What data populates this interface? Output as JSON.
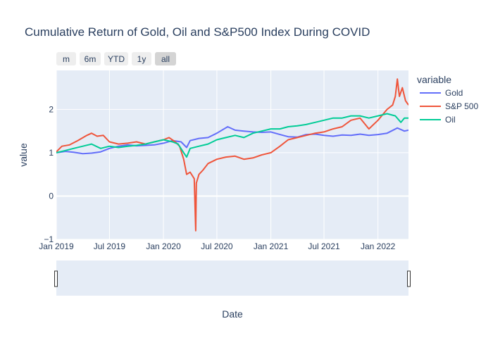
{
  "chart_data": {
    "type": "line",
    "title": "Cumulative Return of Gold, Oil and S&P500 Index During COVID",
    "xlabel": "Date",
    "ylabel": "value",
    "xlim": [
      "2019-01-01",
      "2022-04-15"
    ],
    "ylim": [
      -1,
      2.9
    ],
    "x_ticks": [
      {
        "date": "2019-01-01",
        "label": "Jan 2019"
      },
      {
        "date": "2019-07-01",
        "label": "Jul 2019"
      },
      {
        "date": "2020-01-01",
        "label": "Jan 2020"
      },
      {
        "date": "2020-07-01",
        "label": "Jul 2020"
      },
      {
        "date": "2021-01-01",
        "label": "Jan 2021"
      },
      {
        "date": "2021-07-01",
        "label": "Jul 2021"
      },
      {
        "date": "2022-01-01",
        "label": "Jan 2022"
      }
    ],
    "y_ticks": [
      {
        "value": -1,
        "label": "−1"
      },
      {
        "value": 0,
        "label": "0"
      },
      {
        "value": 1,
        "label": "1"
      },
      {
        "value": 2,
        "label": "2"
      }
    ],
    "grid": true,
    "legend": {
      "title": "variable",
      "placement": "right"
    },
    "range_selector": [
      "m",
      "6m",
      "YTD",
      "1y",
      "all"
    ],
    "range_selector_active": "all",
    "series": [
      {
        "name": "Gold",
        "color": "#636efa",
        "points": [
          [
            "2019-01-01",
            1.0
          ],
          [
            "2019-02-01",
            1.03
          ],
          [
            "2019-03-01",
            1.01
          ],
          [
            "2019-04-01",
            0.98
          ],
          [
            "2019-05-01",
            0.99
          ],
          [
            "2019-06-01",
            1.02
          ],
          [
            "2019-07-01",
            1.1
          ],
          [
            "2019-08-01",
            1.15
          ],
          [
            "2019-09-01",
            1.18
          ],
          [
            "2019-10-01",
            1.16
          ],
          [
            "2019-11-01",
            1.17
          ],
          [
            "2019-12-01",
            1.18
          ],
          [
            "2020-01-01",
            1.22
          ],
          [
            "2020-02-01",
            1.28
          ],
          [
            "2020-03-01",
            1.25
          ],
          [
            "2020-03-20",
            1.12
          ],
          [
            "2020-04-01",
            1.28
          ],
          [
            "2020-05-01",
            1.33
          ],
          [
            "2020-06-01",
            1.35
          ],
          [
            "2020-07-01",
            1.45
          ],
          [
            "2020-08-07",
            1.6
          ],
          [
            "2020-09-01",
            1.52
          ],
          [
            "2020-10-01",
            1.5
          ],
          [
            "2020-11-01",
            1.48
          ],
          [
            "2020-12-01",
            1.47
          ],
          [
            "2021-01-01",
            1.48
          ],
          [
            "2021-02-01",
            1.42
          ],
          [
            "2021-03-01",
            1.37
          ],
          [
            "2021-04-01",
            1.36
          ],
          [
            "2021-05-01",
            1.42
          ],
          [
            "2021-06-01",
            1.43
          ],
          [
            "2021-07-01",
            1.4
          ],
          [
            "2021-08-01",
            1.38
          ],
          [
            "2021-09-01",
            1.41
          ],
          [
            "2021-10-01",
            1.4
          ],
          [
            "2021-11-01",
            1.43
          ],
          [
            "2021-12-01",
            1.4
          ],
          [
            "2022-01-01",
            1.42
          ],
          [
            "2022-02-01",
            1.45
          ],
          [
            "2022-03-08",
            1.57
          ],
          [
            "2022-04-01",
            1.5
          ],
          [
            "2022-04-15",
            1.52
          ]
        ]
      },
      {
        "name": "S&P 500",
        "color": "#ef553b",
        "points": [
          [
            "2019-01-01",
            1.02
          ],
          [
            "2019-01-20",
            1.15
          ],
          [
            "2019-02-15",
            1.18
          ],
          [
            "2019-03-15",
            1.28
          ],
          [
            "2019-04-15",
            1.4
          ],
          [
            "2019-05-01",
            1.45
          ],
          [
            "2019-05-20",
            1.38
          ],
          [
            "2019-06-10",
            1.4
          ],
          [
            "2019-07-01",
            1.25
          ],
          [
            "2019-08-01",
            1.2
          ],
          [
            "2019-09-01",
            1.22
          ],
          [
            "2019-10-01",
            1.25
          ],
          [
            "2019-11-01",
            1.2
          ],
          [
            "2019-12-01",
            1.25
          ],
          [
            "2020-01-01",
            1.3
          ],
          [
            "2020-01-20",
            1.35
          ],
          [
            "2020-02-10",
            1.25
          ],
          [
            "2020-02-25",
            1.15
          ],
          [
            "2020-03-10",
            0.85
          ],
          [
            "2020-03-20",
            0.5
          ],
          [
            "2020-04-01",
            0.55
          ],
          [
            "2020-04-15",
            0.4
          ],
          [
            "2020-04-20",
            -0.8
          ],
          [
            "2020-04-22",
            0.3
          ],
          [
            "2020-05-01",
            0.5
          ],
          [
            "2020-05-15",
            0.6
          ],
          [
            "2020-06-01",
            0.75
          ],
          [
            "2020-07-01",
            0.85
          ],
          [
            "2020-08-01",
            0.9
          ],
          [
            "2020-09-01",
            0.92
          ],
          [
            "2020-10-01",
            0.85
          ],
          [
            "2020-11-01",
            0.88
          ],
          [
            "2020-12-01",
            0.95
          ],
          [
            "2021-01-01",
            1.0
          ],
          [
            "2021-02-01",
            1.15
          ],
          [
            "2021-03-01",
            1.3
          ],
          [
            "2021-04-01",
            1.35
          ],
          [
            "2021-05-01",
            1.4
          ],
          [
            "2021-06-01",
            1.45
          ],
          [
            "2021-07-01",
            1.48
          ],
          [
            "2021-08-01",
            1.55
          ],
          [
            "2021-09-01",
            1.6
          ],
          [
            "2021-10-01",
            1.75
          ],
          [
            "2021-11-01",
            1.8
          ],
          [
            "2021-12-01",
            1.55
          ],
          [
            "2022-01-01",
            1.75
          ],
          [
            "2022-02-01",
            2.0
          ],
          [
            "2022-02-20",
            2.1
          ],
          [
            "2022-03-01",
            2.3
          ],
          [
            "2022-03-08",
            2.7
          ],
          [
            "2022-03-15",
            2.3
          ],
          [
            "2022-03-25",
            2.5
          ],
          [
            "2022-04-05",
            2.2
          ],
          [
            "2022-04-15",
            2.1
          ]
        ]
      },
      {
        "name": "Oil",
        "color": "#00cc96",
        "points": [
          [
            "2019-01-01",
            1.0
          ],
          [
            "2019-02-01",
            1.05
          ],
          [
            "2019-03-01",
            1.1
          ],
          [
            "2019-04-01",
            1.15
          ],
          [
            "2019-05-01",
            1.2
          ],
          [
            "2019-06-01",
            1.1
          ],
          [
            "2019-07-01",
            1.15
          ],
          [
            "2019-08-01",
            1.12
          ],
          [
            "2019-09-01",
            1.15
          ],
          [
            "2019-10-01",
            1.17
          ],
          [
            "2019-11-01",
            1.2
          ],
          [
            "2019-12-01",
            1.25
          ],
          [
            "2020-01-01",
            1.3
          ],
          [
            "2020-02-01",
            1.25
          ],
          [
            "2020-02-20",
            1.2
          ],
          [
            "2020-03-10",
            1.0
          ],
          [
            "2020-03-20",
            0.9
          ],
          [
            "2020-04-01",
            1.1
          ],
          [
            "2020-05-01",
            1.15
          ],
          [
            "2020-06-01",
            1.2
          ],
          [
            "2020-07-01",
            1.3
          ],
          [
            "2020-08-01",
            1.35
          ],
          [
            "2020-09-01",
            1.4
          ],
          [
            "2020-10-01",
            1.35
          ],
          [
            "2020-11-01",
            1.45
          ],
          [
            "2020-12-01",
            1.5
          ],
          [
            "2021-01-01",
            1.55
          ],
          [
            "2021-02-01",
            1.55
          ],
          [
            "2021-03-01",
            1.6
          ],
          [
            "2021-04-01",
            1.62
          ],
          [
            "2021-05-01",
            1.65
          ],
          [
            "2021-06-01",
            1.7
          ],
          [
            "2021-07-01",
            1.75
          ],
          [
            "2021-08-01",
            1.8
          ],
          [
            "2021-09-01",
            1.8
          ],
          [
            "2021-10-01",
            1.85
          ],
          [
            "2021-11-01",
            1.85
          ],
          [
            "2021-12-01",
            1.8
          ],
          [
            "2022-01-01",
            1.85
          ],
          [
            "2022-02-01",
            1.9
          ],
          [
            "2022-03-01",
            1.85
          ],
          [
            "2022-03-20",
            1.7
          ],
          [
            "2022-04-01",
            1.8
          ],
          [
            "2022-04-15",
            1.8
          ]
        ]
      }
    ]
  }
}
